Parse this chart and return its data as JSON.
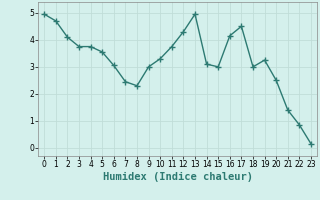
{
  "x": [
    0,
    1,
    2,
    3,
    4,
    5,
    6,
    7,
    8,
    9,
    10,
    11,
    12,
    13,
    14,
    15,
    16,
    17,
    18,
    19,
    20,
    21,
    22,
    23
  ],
  "y": [
    4.95,
    4.7,
    4.1,
    3.75,
    3.75,
    3.55,
    3.05,
    2.45,
    2.3,
    3.0,
    3.3,
    3.75,
    4.3,
    4.95,
    3.1,
    3.0,
    4.15,
    4.5,
    3.0,
    3.25,
    2.5,
    1.4,
    0.85,
    0.15
  ],
  "line_color": "#2d7a72",
  "marker": "+",
  "markersize": 4,
  "linewidth": 1.0,
  "xlabel": "Humidex (Indice chaleur)",
  "xlim": [
    -0.5,
    23.5
  ],
  "ylim": [
    -0.3,
    5.4
  ],
  "yticks": [
    0,
    1,
    2,
    3,
    4,
    5
  ],
  "xticks": [
    0,
    1,
    2,
    3,
    4,
    5,
    6,
    7,
    8,
    9,
    10,
    11,
    12,
    13,
    14,
    15,
    16,
    17,
    18,
    19,
    20,
    21,
    22,
    23
  ],
  "bg_color": "#d4f0ec",
  "grid_color": "#c0ddd8",
  "tick_fontsize": 5.5,
  "xlabel_fontsize": 7.5
}
